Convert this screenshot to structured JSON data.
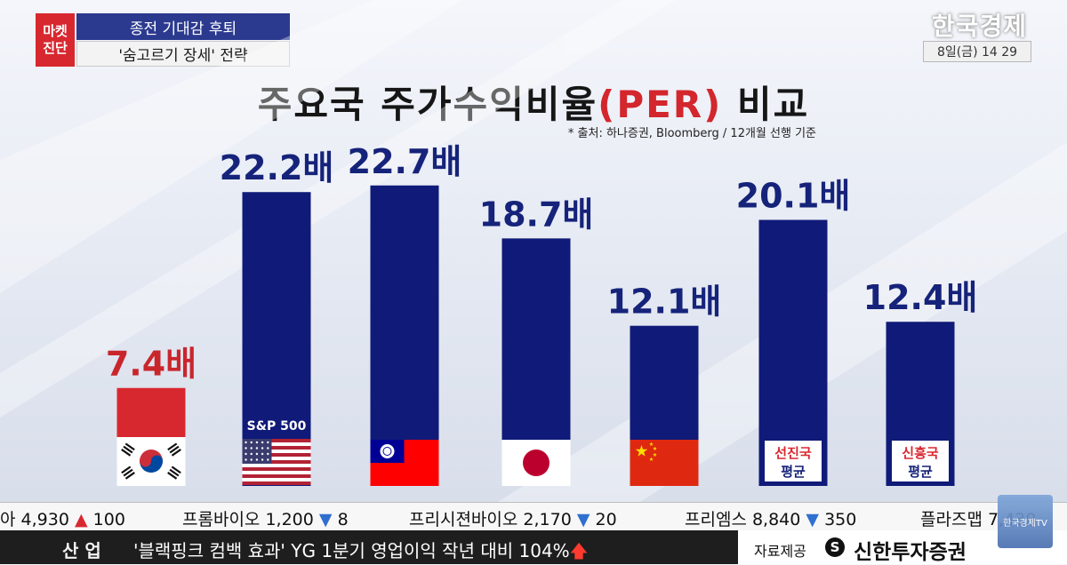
{
  "caption": {
    "badge_line1": "마켓",
    "badge_line2": "진단",
    "headline": "종전 기대감 후퇴",
    "subheadline": "'숨고르기 장세' 전략"
  },
  "broadcaster": {
    "logo": "한국경제",
    "timestamp": "8일(금) 14 29",
    "tv_bug": "한국경제TV"
  },
  "title": {
    "before": "주요국 주가수익비율",
    "highlight": "(PER)",
    "after": " 비교"
  },
  "source_note": "* 출처: 하나증권, Bloomberg / 12개월 선행 기준",
  "chart_data": {
    "type": "bar",
    "unit": "배",
    "categories": [
      "한국",
      "S&P 500",
      "대만",
      "일본",
      "중국",
      "선진국 평균",
      "신흥국 평균"
    ],
    "values": [
      7.4,
      22.2,
      22.7,
      18.7,
      12.1,
      20.1,
      12.4
    ],
    "value_labels": [
      "7.4배",
      "22.2배",
      "22.7배",
      "18.7배",
      "12.1배",
      "20.1배",
      "12.4배"
    ],
    "category_labels": {
      "sp500": "S&P 500",
      "developed_line1": "선진국",
      "developed_line2": "평균",
      "emerging_line1": "신흥국",
      "emerging_line2": "평균"
    },
    "bar_colors": [
      "#d8282f",
      "#101a78",
      "#101a78",
      "#101a78",
      "#101a78",
      "#101a78",
      "#101a78"
    ],
    "label_colors": [
      "#c9262c",
      "#16237a",
      "#16237a",
      "#16237a",
      "#16237a",
      "#16237a",
      "#16237a"
    ],
    "marker_icons": [
      "korea-flag-icon",
      "us-flag-icon",
      "taiwan-flag-icon",
      "japan-flag-icon",
      "china-flag-icon",
      "developed-avg-label",
      "emerging-avg-label"
    ]
  },
  "ticker": {
    "items": [
      {
        "name": "아",
        "price": "4,930",
        "dir": "▲",
        "change": "100"
      },
      {
        "name": "프롬바이오",
        "price": "1,200",
        "dir": "▼",
        "change": "8"
      },
      {
        "name": "프리시젼바이오",
        "price": "2,170",
        "dir": "▼",
        "change": "20"
      },
      {
        "name": "프리엠스",
        "price": "8,840",
        "dir": "▼",
        "change": "350"
      },
      {
        "name": "플라즈맵",
        "price": "7,430",
        "dir": "",
        "change": ""
      }
    ]
  },
  "news": {
    "category": "산 업",
    "headline": "'블랙핑크 컴백 효과' YG 1분기 영업이익 작년 대비 104%",
    "arrow": "🡅"
  },
  "sponsor": {
    "label": "자료제공",
    "mark": "S",
    "name": "신한투자증권"
  }
}
